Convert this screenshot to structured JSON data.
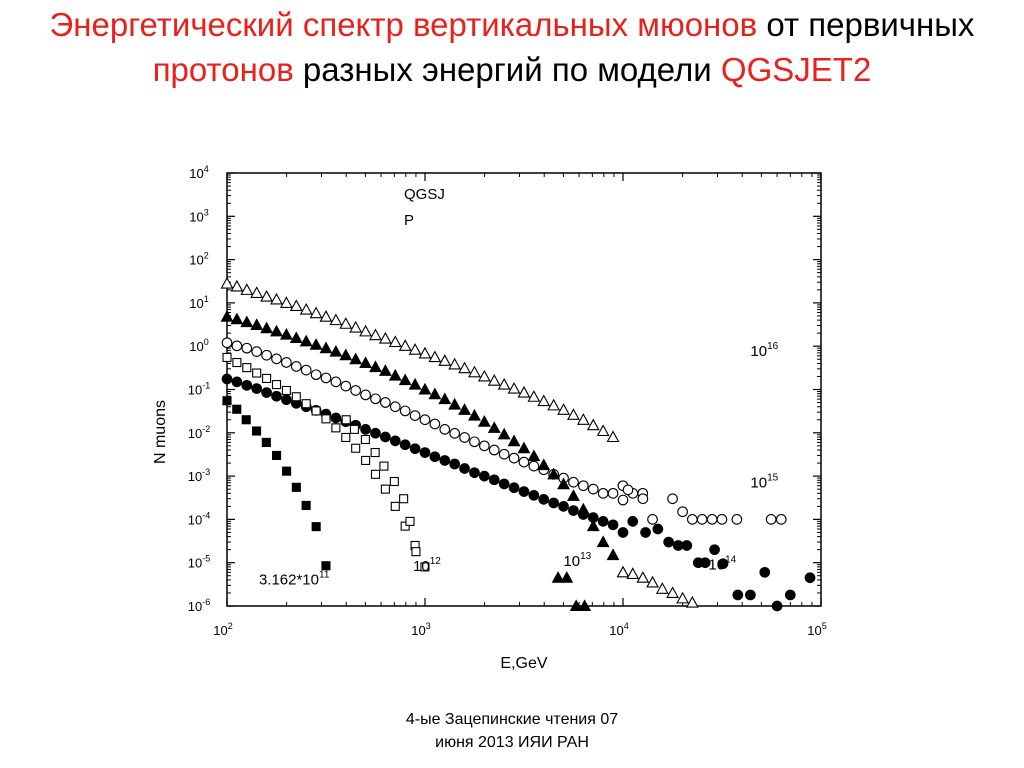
{
  "slide": {
    "title_part1": "Энергетический спектр вертикальных мюонов",
    "title_part2": " от первичных ",
    "title_part3": "протонов",
    "title_part4": " разных энергий по модели ",
    "title_part5": "QGSJET2",
    "footer_line1": "4-ые Зацепинские чтения 07",
    "footer_line2": "июня 2013 ИЯИ РАН",
    "accent_color": "#e8211c"
  },
  "chart_data": {
    "type": "scatter",
    "title": "",
    "xlabel": "E,GeV",
    "ylabel": "N muons",
    "x_scale": "log",
    "y_scale": "log",
    "xlim": [
      100,
      100000
    ],
    "ylim": [
      1e-06,
      10000
    ],
    "x_ticks": [
      {
        "base": "10",
        "exp": "2"
      },
      {
        "base": "10",
        "exp": "3"
      },
      {
        "base": "10",
        "exp": "4"
      },
      {
        "base": "10",
        "exp": "5"
      }
    ],
    "y_ticks": [
      {
        "base": "10",
        "exp": "4"
      },
      {
        "base": "10",
        "exp": "3"
      },
      {
        "base": "10",
        "exp": "2"
      },
      {
        "base": "10",
        "exp": "1"
      },
      {
        "base": "10",
        "exp": "0"
      },
      {
        "base": "10",
        "exp": "-1"
      },
      {
        "base": "10",
        "exp": "-2"
      },
      {
        "base": "10",
        "exp": "-3"
      },
      {
        "base": "10",
        "exp": "-4"
      },
      {
        "base": "10",
        "exp": "-5"
      },
      {
        "base": "10",
        "exp": "-6"
      }
    ],
    "annotation_line1": "QGSJ",
    "annotation_line2": "P",
    "grid": false,
    "series": [
      {
        "label_base": "10",
        "label_exp": "16",
        "label_pos": {
          "x": 44000,
          "y": 0.6
        },
        "marker": "circle",
        "filled": false,
        "x_start": 100,
        "x_ratio": 1.122,
        "values": [
          1.2,
          1.02,
          0.9,
          0.75,
          0.62,
          0.51,
          0.42,
          0.34,
          0.28,
          0.22,
          0.185,
          0.15,
          0.12,
          0.095,
          0.075,
          0.061,
          0.05,
          0.04,
          0.032,
          0.025,
          0.02,
          0.016,
          0.012,
          0.0097,
          0.0078,
          0.0062,
          0.005,
          0.004,
          0.0032,
          0.0026,
          0.0021,
          0.0017,
          0.0014,
          0.0011,
          0.0009,
          0.00072,
          0.0006,
          0.0005,
          0.0004,
          0.0004,
          0.0006,
          0.0004,
          0.0004
        ],
        "tail": [
          [
            10000,
            0.00028
          ],
          [
            10600,
            0.00048
          ],
          [
            12600,
            0.0003
          ],
          [
            14100,
            0.0001
          ],
          [
            17800,
            0.0003
          ],
          [
            20000,
            0.00015
          ],
          [
            22400,
            0.0001
          ],
          [
            25100,
            0.0001
          ],
          [
            28200,
            0.0001
          ],
          [
            31600,
            0.0001
          ],
          [
            37600,
            0.0001
          ],
          [
            56000,
            0.0001
          ],
          [
            63000,
            0.0001
          ]
        ]
      },
      {
        "label_base": "10",
        "label_exp": "15",
        "label_pos": {
          "x": 44000,
          "y": 0.00055
        },
        "marker": "circle",
        "filled": true,
        "x_start": 100,
        "x_ratio": 1.122,
        "values": [
          0.175,
          0.15,
          0.125,
          0.105,
          0.085,
          0.07,
          0.058,
          0.048,
          0.04,
          0.033,
          0.027,
          0.022,
          0.018,
          0.015,
          0.012,
          0.0098,
          0.008,
          0.0065,
          0.0053,
          0.0043,
          0.0035,
          0.0028,
          0.0023,
          0.0019,
          0.0015,
          0.0012,
          0.001,
          0.00082,
          0.00066,
          0.00054,
          0.00044,
          0.00036,
          0.00029,
          0.00024,
          0.0002,
          0.00016,
          0.00013,
          0.00011,
          9e-05,
          7.5e-05
        ],
        "tail": [
          [
            10000,
            5e-05
          ],
          [
            11200,
            9e-05
          ],
          [
            13000,
            5e-05
          ],
          [
            15000,
            6e-05
          ],
          [
            17000,
            3e-05
          ],
          [
            19000,
            2.5e-05
          ],
          [
            21000,
            2.5e-05
          ],
          [
            24000,
            1e-05
          ],
          [
            26000,
            1e-05
          ],
          [
            29000,
            2e-05
          ],
          [
            32000,
            9.5e-06
          ],
          [
            38000,
            1.8e-06
          ],
          [
            44000,
            1.8e-06
          ],
          [
            52000,
            6e-06
          ],
          [
            60000,
            1e-06
          ],
          [
            70000,
            1.8e-06
          ],
          [
            80000,
            9e-07
          ],
          [
            88000,
            4.5e-06
          ]
        ]
      },
      {
        "label_base": "10",
        "label_exp": "14",
        "label_pos": {
          "x": 27000,
          "y": 7e-06
        },
        "marker": "triangle",
        "filled": false,
        "x_start": 100,
        "x_ratio": 1.122,
        "values": [
          28,
          24,
          20,
          17,
          14,
          12,
          10,
          8.5,
          7,
          5.8,
          4.8,
          4,
          3.3,
          2.7,
          2.2,
          1.8,
          1.5,
          1.25,
          1.02,
          0.83,
          0.68,
          0.56,
          0.46,
          0.38,
          0.31,
          0.25,
          0.2,
          0.16,
          0.13,
          0.105,
          0.085,
          0.068,
          0.054,
          0.043,
          0.034,
          0.026,
          0.02,
          0.015,
          0.011,
          0.008
        ],
        "tail": [
          [
            10000,
            6e-06
          ],
          [
            11200,
            5.5e-06
          ],
          [
            12600,
            4.5e-06
          ],
          [
            14100,
            3.5e-06
          ],
          [
            15800,
            2.5e-06
          ],
          [
            17800,
            2e-06
          ],
          [
            20000,
            1.5e-06
          ],
          [
            22400,
            1.2e-06
          ],
          [
            25100,
            7e-07
          ],
          [
            28200,
            7e-07
          ],
          [
            31600,
            1.8e-07
          ],
          [
            35500,
            1.8e-07
          ]
        ]
      },
      {
        "label_base": "10",
        "label_exp": "13",
        "label_pos": {
          "x": 5000,
          "y": 8.5e-06
        },
        "marker": "triangle",
        "filled": true,
        "x_start": 100,
        "x_ratio": 1.122,
        "values": [
          4.8,
          4.2,
          3.6,
          3.1,
          2.6,
          2.2,
          1.85,
          1.55,
          1.3,
          1.08,
          0.9,
          0.75,
          0.62,
          0.5,
          0.41,
          0.33,
          0.27,
          0.21,
          0.165,
          0.13,
          0.1,
          0.078,
          0.06,
          0.045,
          0.034,
          0.025,
          0.018,
          0.013,
          0.0092,
          0.0064,
          0.0044,
          0.0029,
          0.0018,
          0.0011,
          0.00065,
          0.00035,
          0.00017,
          7e-05,
          3e-05,
          1.5e-05
        ],
        "tail": [
          [
            4700,
            4.5e-06
          ],
          [
            5200,
            4.5e-06
          ],
          [
            5800,
            1e-06
          ],
          [
            6400,
            1e-06
          ]
        ]
      },
      {
        "label_base": "10",
        "label_exp": "12",
        "label_pos": {
          "x": 870,
          "y": 6.5e-06
        },
        "marker": "square",
        "filled": false,
        "x_start": 100,
        "x_ratio": 1.122,
        "values": [
          0.55,
          0.42,
          0.32,
          0.24,
          0.18,
          0.13,
          0.095,
          0.068,
          0.047,
          0.032,
          0.021,
          0.013,
          0.0078,
          0.0044,
          0.0023,
          0.0011,
          0.0005,
          0.0002,
          7e-05,
          2.5e-05,
          8e-06
        ],
        "tail": [
          [
            400,
            0.02
          ],
          [
            440,
            0.012
          ],
          [
            500,
            0.007
          ],
          [
            560,
            0.0035
          ],
          [
            620,
            0.0017
          ],
          [
            700,
            0.00075
          ],
          [
            780,
            0.0003
          ],
          [
            840,
            9e-05
          ],
          [
            900,
            1.8e-05
          ]
        ]
      },
      {
        "label_base": "3.162*10",
        "label_exp": "11",
        "label_pos": {
          "x": 145,
          "y": 3.1e-06
        },
        "marker": "square",
        "filled": true,
        "x_start": 100,
        "x_ratio": 1.122,
        "values": [
          0.055,
          0.032,
          0.018,
          0.0095,
          0.0048,
          0.0022,
          0.00095,
          0.00038,
          0.00013,
          4e-05,
          1e-05,
          2.5e-06
        ],
        "tail": [
          [
            100,
            0.055
          ],
          [
            112,
            0.035
          ],
          [
            125,
            0.02
          ],
          [
            141,
            0.011
          ],
          [
            158,
            0.006
          ],
          [
            178,
            0.003
          ],
          [
            200,
            0.0013
          ],
          [
            224,
            0.00055
          ],
          [
            251,
            0.00021
          ],
          [
            282,
            6.8e-05
          ],
          [
            316,
            8.5e-06
          ]
        ]
      }
    ]
  }
}
